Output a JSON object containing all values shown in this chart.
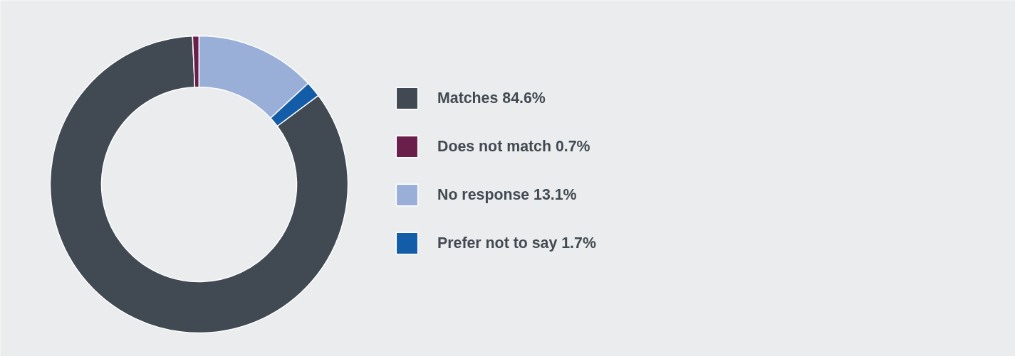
{
  "chart_data": {
    "type": "donut",
    "categories": [
      "Matches",
      "Does not match",
      "No response",
      "Prefer not to say"
    ],
    "values": [
      84.6,
      0.7,
      13.1,
      1.7
    ],
    "value_labels": [
      "84.6%",
      "0.7%",
      "13.1%",
      "1.7%"
    ],
    "colors": [
      "#414a52",
      "#6a1f4b",
      "#9aafd8",
      "#135ca8"
    ],
    "legend": "right"
  }
}
